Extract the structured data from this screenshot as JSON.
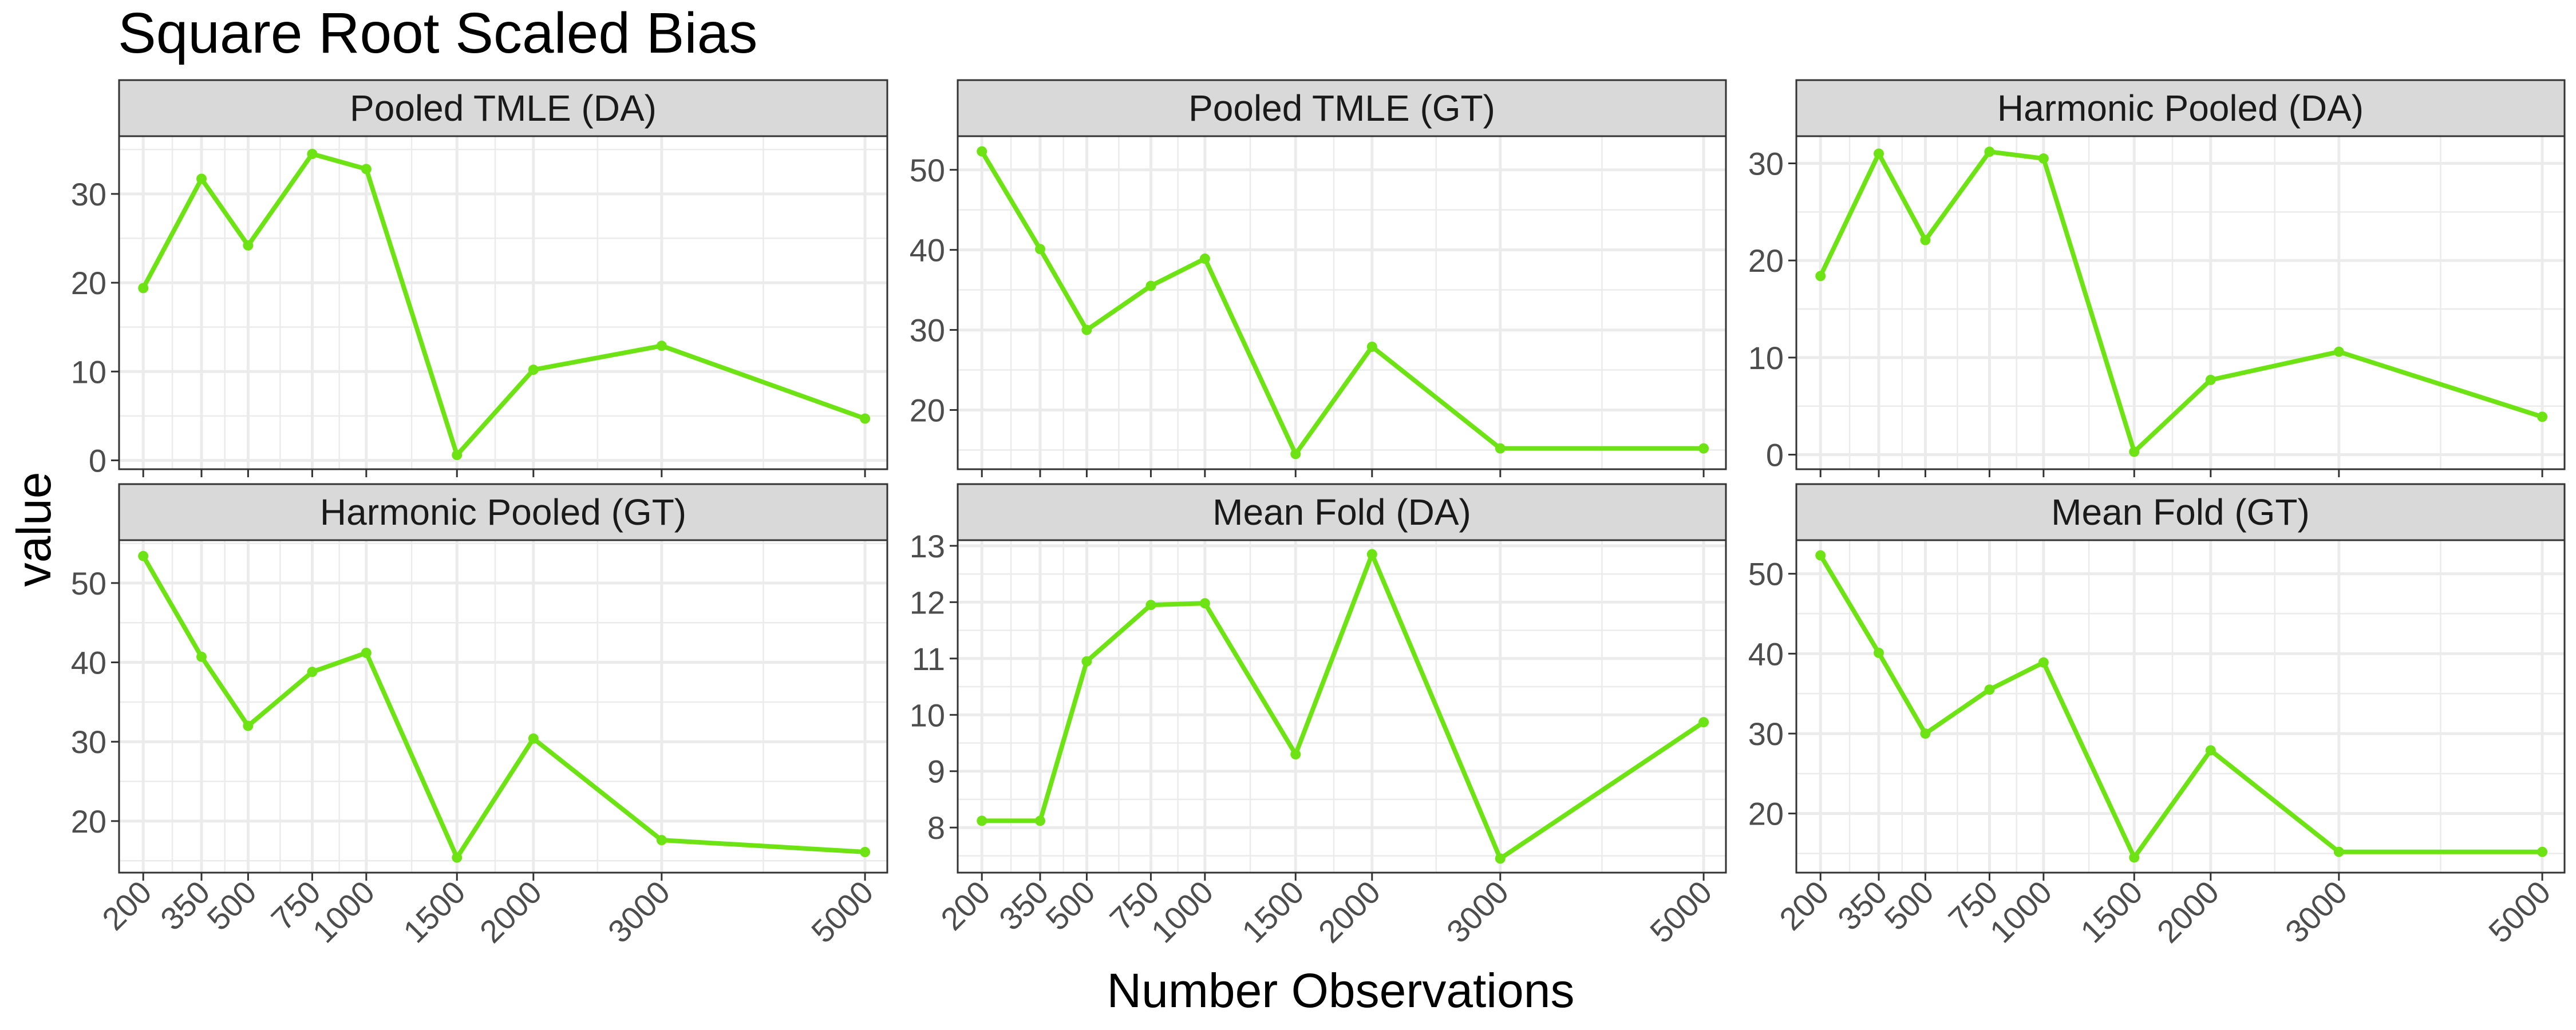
{
  "title": "Square Root Scaled Bias",
  "x_axis_title": "Number Observations",
  "y_axis_title": "value",
  "colors": {
    "line": "#6ee314",
    "grid": "#ebebeb",
    "strip_fill": "#d9d9d9",
    "panel_border": "#333333"
  },
  "chart_data": [
    {
      "type": "line",
      "title": "Pooled TMLE (DA)",
      "x": [
        200,
        350,
        500,
        750,
        1000,
        1500,
        2000,
        3000,
        5000
      ],
      "x_ticks": [
        200,
        350,
        500,
        750,
        1000,
        1500,
        2000,
        3000,
        5000
      ],
      "y": [
        19.4,
        31.7,
        24.2,
        34.5,
        32.8,
        0.6,
        10.2,
        12.9,
        4.7
      ],
      "ylim": [
        -1.0,
        36.5
      ],
      "y_ticks": [
        0,
        10,
        20,
        30
      ],
      "x_scale": "sqrt",
      "grid": true
    },
    {
      "type": "line",
      "title": "Pooled TMLE (GT)",
      "x": [
        200,
        350,
        500,
        750,
        1000,
        1500,
        2000,
        3000,
        5000
      ],
      "x_ticks": [
        200,
        350,
        500,
        750,
        1000,
        1500,
        2000,
        3000,
        5000
      ],
      "y": [
        52.3,
        40.1,
        30.0,
        35.5,
        38.9,
        14.5,
        27.9,
        15.2,
        15.2
      ],
      "ylim": [
        12.6,
        54.2
      ],
      "y_ticks": [
        20,
        30,
        40,
        50
      ],
      "x_scale": "sqrt",
      "grid": true
    },
    {
      "type": "line",
      "title": "Harmonic Pooled (DA)",
      "x": [
        200,
        350,
        500,
        750,
        1000,
        1500,
        2000,
        3000,
        5000
      ],
      "x_ticks": [
        200,
        350,
        500,
        750,
        1000,
        1500,
        2000,
        3000,
        5000
      ],
      "y": [
        18.4,
        31.0,
        22.1,
        31.2,
        30.5,
        0.3,
        7.7,
        10.6,
        3.9
      ],
      "ylim": [
        -1.5,
        32.8
      ],
      "y_ticks": [
        0,
        10,
        20,
        30
      ],
      "x_scale": "sqrt",
      "grid": true
    },
    {
      "type": "line",
      "title": "Harmonic Pooled (GT)",
      "x": [
        200,
        350,
        500,
        750,
        1000,
        1500,
        2000,
        3000,
        5000
      ],
      "x_ticks": [
        200,
        350,
        500,
        750,
        1000,
        1500,
        2000,
        3000,
        5000
      ],
      "y": [
        53.4,
        40.7,
        32.0,
        38.8,
        41.2,
        15.4,
        30.4,
        17.6,
        16.1
      ],
      "ylim": [
        13.5,
        55.4
      ],
      "y_ticks": [
        20,
        30,
        40,
        50
      ],
      "x_scale": "sqrt",
      "grid": true
    },
    {
      "type": "line",
      "title": "Mean Fold (DA)",
      "x": [
        200,
        350,
        500,
        750,
        1000,
        1500,
        2000,
        3000,
        5000
      ],
      "x_ticks": [
        200,
        350,
        500,
        750,
        1000,
        1500,
        2000,
        3000,
        5000
      ],
      "y": [
        8.12,
        8.12,
        10.95,
        11.95,
        11.98,
        9.3,
        12.85,
        7.45,
        9.87
      ],
      "ylim": [
        7.2,
        13.1
      ],
      "y_ticks": [
        8,
        9,
        10,
        11,
        12,
        13
      ],
      "x_scale": "sqrt",
      "grid": true
    },
    {
      "type": "line",
      "title": "Mean Fold (GT)",
      "x": [
        200,
        350,
        500,
        750,
        1000,
        1500,
        2000,
        3000,
        5000
      ],
      "x_ticks": [
        200,
        350,
        500,
        750,
        1000,
        1500,
        2000,
        3000,
        5000
      ],
      "y": [
        52.3,
        40.1,
        30.0,
        35.5,
        38.9,
        14.5,
        27.9,
        15.2,
        15.2
      ],
      "ylim": [
        12.6,
        54.2
      ],
      "y_ticks": [
        20,
        30,
        40,
        50
      ],
      "x_scale": "sqrt",
      "grid": true
    }
  ]
}
